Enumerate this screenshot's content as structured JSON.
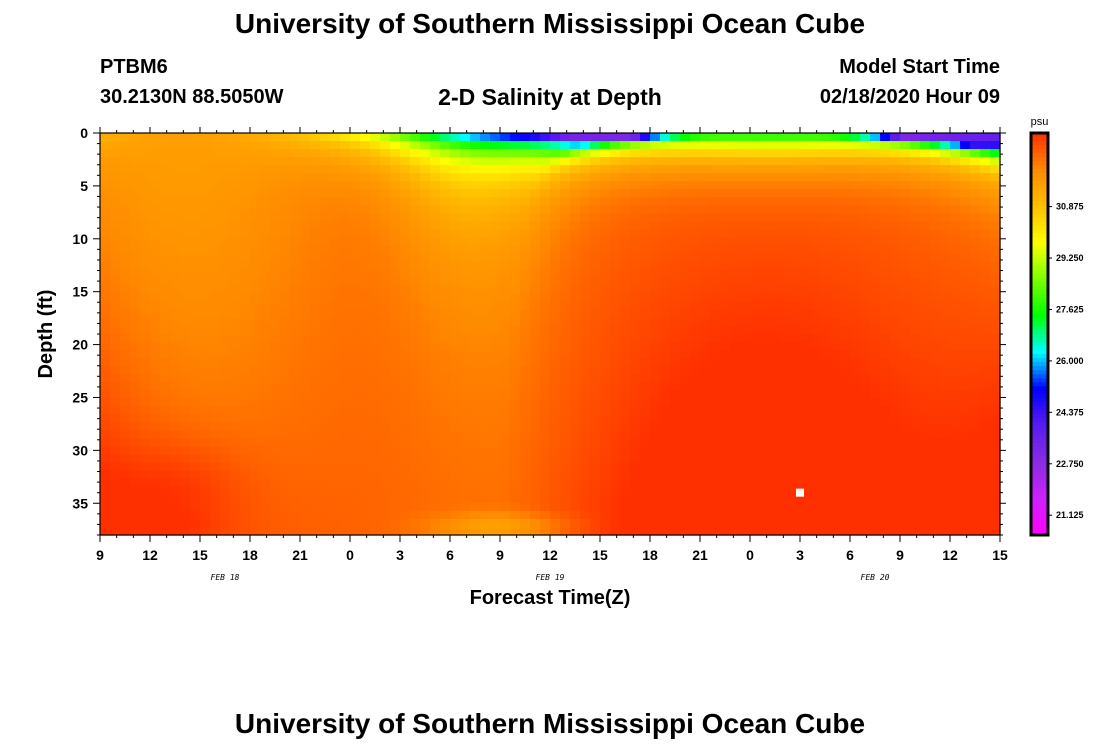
{
  "header": {
    "title": "University of Southern Mississippi Ocean Cube",
    "station": "PTBM6",
    "location": "30.2130N 88.5050W",
    "plot_title": "2-D Salinity at Depth",
    "model_start_label": "Model Start Time",
    "model_start_value": "02/18/2020 Hour 09"
  },
  "footer": {
    "title": "University of Southern Mississippi Ocean Cube"
  },
  "chart_data": {
    "type": "heatmap",
    "title": "2-D Salinity at Depth",
    "xlabel": "Forecast Time(Z)",
    "ylabel": "Depth (ft)",
    "x_hours_range": [
      0,
      54
    ],
    "x_tick_labels": [
      "9",
      "12",
      "15",
      "18",
      "21",
      "0",
      "3",
      "6",
      "9",
      "12",
      "15",
      "18",
      "21",
      "0",
      "3",
      "6",
      "9",
      "12",
      "15"
    ],
    "date_labels": [
      "FEB 18",
      "FEB 19",
      "FEB 20"
    ],
    "y_ticks": [
      0,
      5,
      10,
      15,
      20,
      25,
      30,
      35
    ],
    "ylim": [
      0,
      38
    ],
    "y_inverted": true,
    "colorbar": {
      "unit": "psu",
      "min": 20.5,
      "max": 33.2,
      "tick_labels": [
        "21.125",
        "22.750",
        "24.375",
        "26.000",
        "27.625",
        "29.250",
        "30.875"
      ],
      "tick_values": [
        21.125,
        22.75,
        24.375,
        26.0,
        27.625,
        29.25,
        30.875
      ]
    },
    "colors": {
      "stops": [
        "#ff00ff",
        "#cc22ff",
        "#8a2be2",
        "#5a1cf0",
        "#0000ff",
        "#00ffff",
        "#00ff00",
        "#7cff00",
        "#ffff00",
        "#ffbf00",
        "#ff8a00",
        "#ff3000"
      ]
    },
    "marker": {
      "hour": 42,
      "depth_ft": 34
    }
  }
}
